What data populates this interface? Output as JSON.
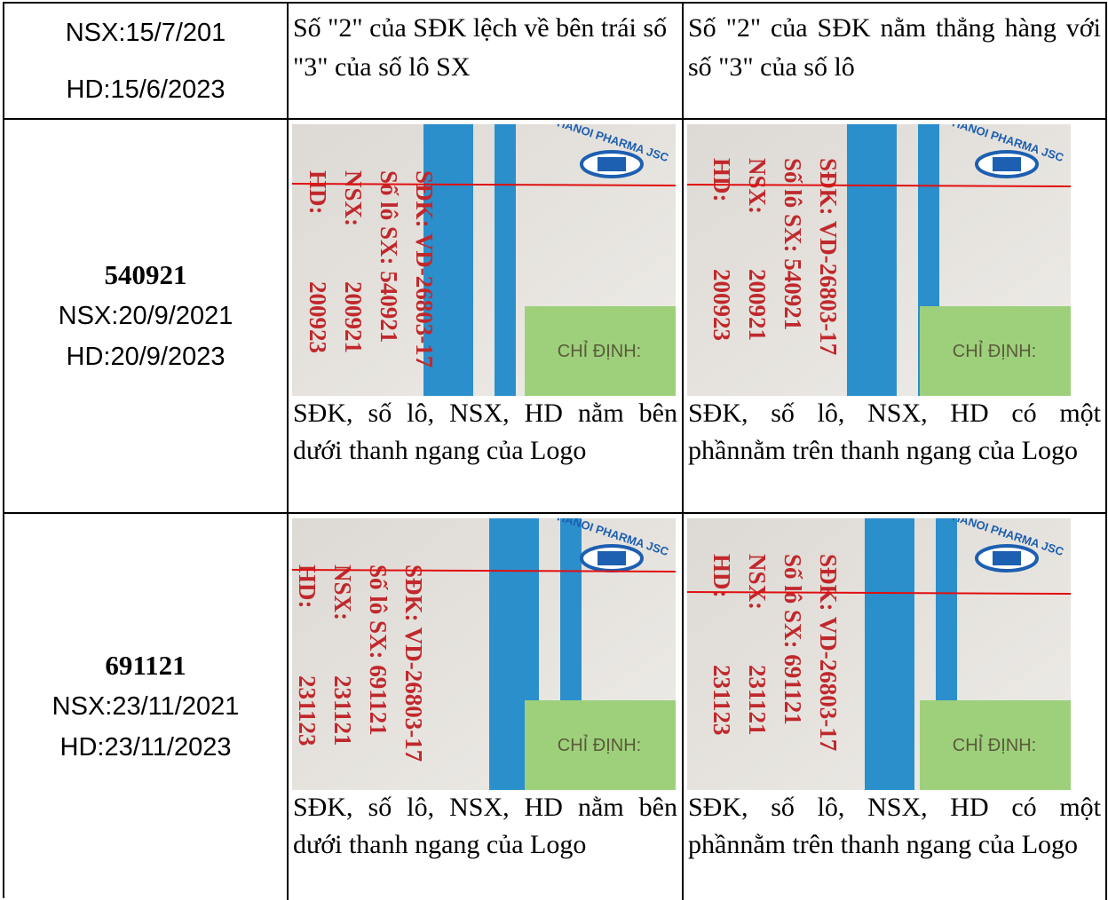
{
  "table": {
    "rows": [
      {
        "cells": [
          {
            "lines": [
              "NSX:15/7/201",
              "HD:15/6/2023"
            ]
          },
          {
            "text": "Số \"2\" của SĐK lệch về bên trái số \"3\" của số lô SX"
          },
          {
            "text": "Số \"2\" của SĐK nằm thẳng hàng với số \"3\" của số lô"
          }
        ]
      },
      {
        "cells": [
          {
            "lot": "540921",
            "lines": [
              "NSX:20/9/2021",
              "HD:20/9/2023"
            ]
          },
          {
            "photo": {
              "brand": "HANOI PHARMA JSC",
              "label_lines": [
                [
                  "SĐK: VD-26803-17"
                ],
                [
                  "Số lô SX: 540921"
                ],
                [
                  "NSX:",
                  "200921"
                ],
                [
                  "HD:",
                  "200923"
                ]
              ],
              "box": "CHỈ ĐỊNH:"
            },
            "text": "SĐK, số lô, NSX, HD nằm bên dưới thanh ngang của Logo"
          },
          {
            "photo": {
              "brand": "HANOI PHARMA JSC",
              "label_lines": [
                [
                  "SĐK: VD-26803-17"
                ],
                [
                  "Số lô SX: 540921"
                ],
                [
                  "NSX:",
                  "200921"
                ],
                [
                  "HD:",
                  "200923"
                ]
              ],
              "box": "CHỈ ĐỊNH:"
            },
            "text": "SĐK, số lô, NSX, HD có một phầnnằm trên thanh ngang của Logo"
          }
        ]
      },
      {
        "cells": [
          {
            "lot": "691121",
            "lines": [
              "NSX:23/11/2021",
              "HD:23/11/2023"
            ]
          },
          {
            "photo": {
              "brand": "HANOI PHARMA JSC",
              "label_lines": [
                [
                  "SĐK: VD-26803-17"
                ],
                [
                  "Số lô SX: 691121"
                ],
                [
                  "NSX:",
                  "231121"
                ],
                [
                  "HD:",
                  "231123"
                ]
              ],
              "box": "CHỈ ĐỊNH:"
            },
            "text": "SĐK, số lô, NSX, HD nằm bên dưới thanh ngang của Logo"
          },
          {
            "photo": {
              "brand": "HANOI PHARMA JSC",
              "label_lines": [
                [
                  "SĐK: VD-26803-17"
                ],
                [
                  "Số lô SX: 691121"
                ],
                [
                  "NSX:",
                  "231121"
                ],
                [
                  "HD:",
                  "231123"
                ]
              ],
              "box": "CHỈ ĐỊNH:"
            },
            "text": "SĐK, số lô, NSX, HD có một phầnnằm trên thanh ngang của Logo"
          }
        ]
      }
    ]
  }
}
